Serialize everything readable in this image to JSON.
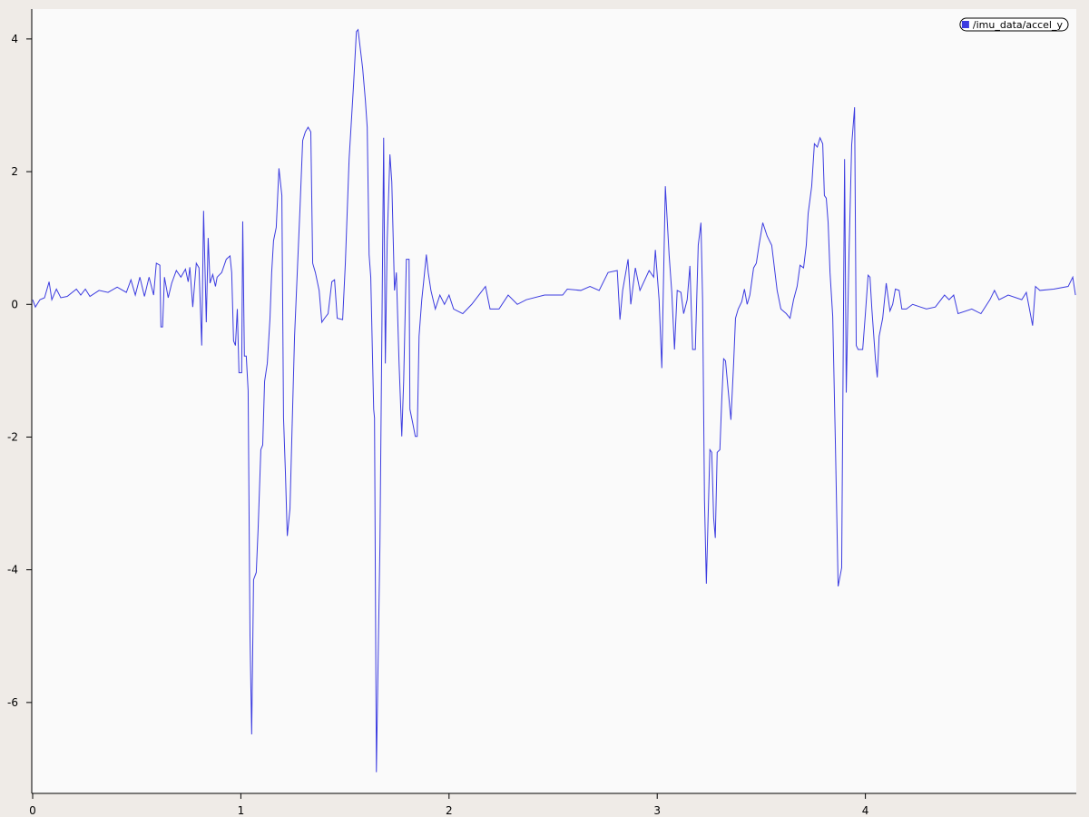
{
  "chart_data": {
    "type": "line",
    "x": [
      0.0,
      0.013,
      0.035,
      0.057,
      0.079,
      0.092,
      0.114,
      0.135,
      0.166,
      0.21,
      0.231,
      0.253,
      0.275,
      0.319,
      0.362,
      0.406,
      0.45,
      0.472,
      0.493,
      0.515,
      0.537,
      0.559,
      0.581,
      0.594,
      0.611,
      0.616,
      0.624,
      0.633,
      0.651,
      0.668,
      0.69,
      0.712,
      0.734,
      0.747,
      0.755,
      0.769,
      0.786,
      0.799,
      0.812,
      0.821,
      0.834,
      0.843,
      0.852,
      0.865,
      0.878,
      0.886,
      0.908,
      0.93,
      0.948,
      0.956,
      0.965,
      0.974,
      0.983,
      0.991,
      1.004,
      1.009,
      1.017,
      1.026,
      1.035,
      1.044,
      1.052,
      1.061,
      1.074,
      1.083,
      1.096,
      1.105,
      1.114,
      1.127,
      1.14,
      1.148,
      1.157,
      1.17,
      1.183,
      1.197,
      1.205,
      1.214,
      1.223,
      1.236,
      1.245,
      1.258,
      1.271,
      1.284,
      1.297,
      1.31,
      1.323,
      1.336,
      1.345,
      1.358,
      1.376,
      1.389,
      1.402,
      1.419,
      1.437,
      1.45,
      1.463,
      1.489,
      1.502,
      1.52,
      1.541,
      1.555,
      1.563,
      1.572,
      1.585,
      1.598,
      1.607,
      1.616,
      1.624,
      1.638,
      1.642,
      1.651,
      1.668,
      1.686,
      1.694,
      1.703,
      1.716,
      1.725,
      1.738,
      1.747,
      1.76,
      1.773,
      1.782,
      1.795,
      1.808,
      1.812,
      1.825,
      1.838,
      1.847,
      1.856,
      1.869,
      1.878,
      1.891,
      1.9,
      1.913,
      1.934,
      1.956,
      1.978,
      2.0,
      2.022,
      2.066,
      2.109,
      2.175,
      2.197,
      2.24,
      2.284,
      2.328,
      2.371,
      2.459,
      2.546,
      2.568,
      2.633,
      2.677,
      2.721,
      2.764,
      2.808,
      2.821,
      2.834,
      2.86,
      2.873,
      2.895,
      2.917,
      2.961,
      2.983,
      2.991,
      3.009,
      3.022,
      3.039,
      3.057,
      3.07,
      3.083,
      3.096,
      3.114,
      3.127,
      3.144,
      3.157,
      3.17,
      3.183,
      3.197,
      3.21,
      3.218,
      3.227,
      3.236,
      3.253,
      3.262,
      3.271,
      3.279,
      3.288,
      3.301,
      3.31,
      3.319,
      3.328,
      3.341,
      3.354,
      3.367,
      3.376,
      3.389,
      3.406,
      3.419,
      3.432,
      3.445,
      3.463,
      3.476,
      3.489,
      3.507,
      3.528,
      3.55,
      3.563,
      3.576,
      3.594,
      3.62,
      3.638,
      3.655,
      3.672,
      3.686,
      3.703,
      3.716,
      3.725,
      3.742,
      3.755,
      3.769,
      3.782,
      3.795,
      3.803,
      3.812,
      3.821,
      3.83,
      3.843,
      3.856,
      3.869,
      3.886,
      3.9,
      3.908,
      3.921,
      3.934,
      3.948,
      3.956,
      3.965,
      3.987,
      4.0,
      4.013,
      4.022,
      4.031,
      4.048,
      4.057,
      4.066,
      4.083,
      4.1,
      4.118,
      4.131,
      4.144,
      4.162,
      4.175,
      4.197,
      4.227,
      4.293,
      4.336,
      4.38,
      4.402,
      4.424,
      4.445,
      4.511,
      4.555,
      4.598,
      4.62,
      4.642,
      4.686,
      4.751,
      4.773,
      4.803,
      4.817,
      4.838,
      4.904,
      4.974,
      4.996,
      5.009
    ],
    "series": [
      {
        "name": "/imu_data/accel_y",
        "color": "#3c3ce0",
        "values": [
          0.07,
          -0.04,
          0.07,
          0.1,
          0.34,
          0.07,
          0.23,
          0.1,
          0.12,
          0.23,
          0.14,
          0.23,
          0.12,
          0.21,
          0.18,
          0.26,
          0.18,
          0.37,
          0.14,
          0.41,
          0.12,
          0.41,
          0.14,
          0.62,
          0.59,
          -0.34,
          -0.34,
          0.41,
          0.1,
          0.32,
          0.51,
          0.41,
          0.53,
          0.34,
          0.56,
          -0.04,
          0.62,
          0.55,
          -0.62,
          1.41,
          -0.27,
          1.0,
          0.32,
          0.45,
          0.27,
          0.41,
          0.48,
          0.68,
          0.73,
          0.48,
          -0.55,
          -0.62,
          -0.07,
          -1.03,
          -1.03,
          1.25,
          -0.78,
          -0.78,
          -1.3,
          -5.0,
          -6.48,
          -4.15,
          -4.04,
          -3.38,
          -2.19,
          -2.12,
          -1.16,
          -0.89,
          -0.21,
          0.48,
          0.96,
          1.16,
          2.05,
          1.64,
          -1.71,
          -2.53,
          -3.49,
          -3.08,
          -1.99,
          -0.48,
          0.48,
          1.44,
          2.47,
          2.6,
          2.67,
          2.6,
          0.62,
          0.48,
          0.21,
          -0.27,
          -0.21,
          -0.14,
          0.34,
          0.37,
          -0.21,
          -0.23,
          0.62,
          2.19,
          3.29,
          4.11,
          4.14,
          3.9,
          3.56,
          3.08,
          2.67,
          0.75,
          0.41,
          -1.58,
          -1.71,
          -7.05,
          -3.63,
          2.51,
          -0.89,
          0.96,
          2.26,
          1.85,
          0.21,
          0.48,
          -0.89,
          -1.99,
          -1.16,
          0.68,
          0.68,
          -1.58,
          -1.78,
          -1.99,
          -1.99,
          -0.48,
          0.07,
          0.34,
          0.75,
          0.48,
          0.21,
          -0.07,
          0.14,
          0.0,
          0.14,
          -0.07,
          -0.14,
          0.0,
          0.27,
          -0.07,
          -0.07,
          0.14,
          0.0,
          0.07,
          0.14,
          0.14,
          0.23,
          0.21,
          0.27,
          0.21,
          0.48,
          0.51,
          -0.23,
          0.21,
          0.68,
          0.0,
          0.55,
          0.21,
          0.51,
          0.41,
          0.82,
          0.07,
          -0.96,
          1.78,
          0.75,
          0.18,
          -0.68,
          0.21,
          0.18,
          -0.14,
          0.07,
          0.58,
          -0.68,
          -0.68,
          0.89,
          1.23,
          0.07,
          -2.95,
          -4.21,
          -2.19,
          -2.23,
          -3.22,
          -3.52,
          -2.23,
          -2.19,
          -1.44,
          -0.82,
          -0.85,
          -1.3,
          -1.74,
          -0.89,
          -0.21,
          -0.07,
          0.04,
          0.23,
          0.0,
          0.14,
          0.55,
          0.62,
          0.89,
          1.23,
          1.03,
          0.89,
          0.55,
          0.21,
          -0.07,
          -0.14,
          -0.21,
          0.07,
          0.27,
          0.59,
          0.55,
          0.89,
          1.37,
          1.78,
          2.42,
          2.37,
          2.51,
          2.42,
          1.64,
          1.6,
          1.23,
          0.48,
          -0.18,
          -2.12,
          -4.25,
          -3.97,
          2.19,
          -1.33,
          0.73,
          2.4,
          2.97,
          -0.62,
          -0.68,
          -0.68,
          -0.14,
          0.44,
          0.41,
          -0.07,
          -0.82,
          -1.1,
          -0.48,
          -0.21,
          0.32,
          -0.1,
          0.0,
          0.23,
          0.21,
          -0.07,
          -0.07,
          0.0,
          -0.07,
          -0.04,
          0.14,
          0.07,
          0.14,
          -0.14,
          -0.07,
          -0.14,
          0.07,
          0.21,
          0.07,
          0.14,
          0.07,
          0.18,
          -0.32,
          0.27,
          0.21,
          0.23,
          0.27,
          0.41,
          0.14
        ]
      }
    ],
    "xlim": [
      0,
      5.013
    ],
    "ylim": [
      -7.37,
      4.45
    ],
    "xticks": [
      0,
      1,
      2,
      3,
      4
    ],
    "yticks": [
      -6,
      -4,
      -2,
      0,
      2,
      4
    ],
    "legend": "top-right"
  }
}
